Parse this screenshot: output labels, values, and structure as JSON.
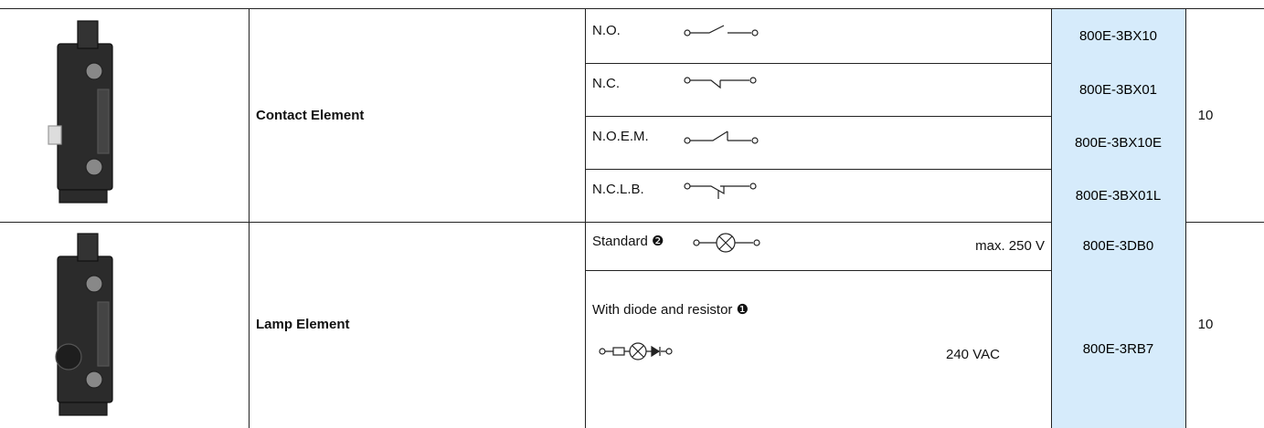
{
  "rows": [
    {
      "name": "Contact Element",
      "quantity": "10",
      "options": [
        {
          "label": "N.O.",
          "catalog": "800E-3BX10"
        },
        {
          "label": "N.C.",
          "catalog": "800E-3BX01"
        },
        {
          "label": "N.O.E.M.",
          "catalog": "800E-3BX10E"
        },
        {
          "label": "N.C.L.B.",
          "catalog": "800E-3BX01L"
        }
      ]
    },
    {
      "name": "Lamp Element",
      "quantity": "10",
      "options": [
        {
          "label": "Standard ❷",
          "rating": "max. 250 V",
          "catalog": "800E-3DB0"
        },
        {
          "label": "With diode and resistor ❶",
          "rating": "240 VAC",
          "catalog": "800E-3RB7"
        }
      ]
    }
  ]
}
